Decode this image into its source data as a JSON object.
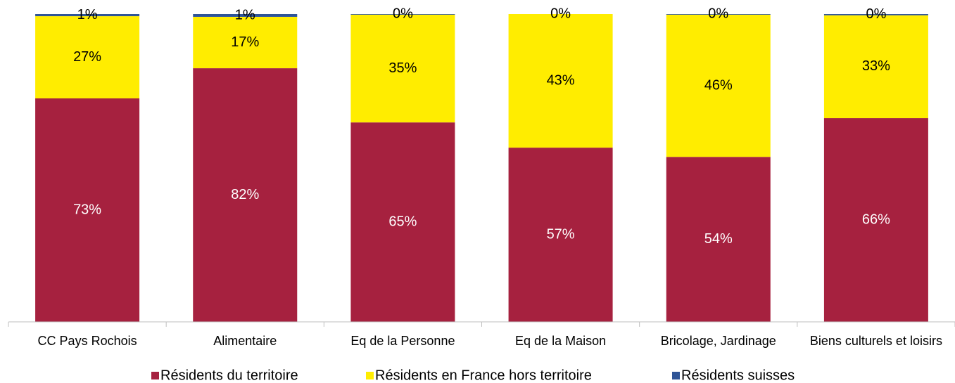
{
  "chart_data": {
    "type": "stacked_bar",
    "categories": [
      "CC Pays Rochois",
      "Alimentaire",
      "Eq de la Personne",
      "Eq de la Maison",
      "Bricolage, Jardinage",
      "Biens culturels et loisirs"
    ],
    "series": [
      {
        "name": "Résidents du territoire",
        "color": "#a6213f",
        "values": [
          72.6,
          82.4,
          64.8,
          56.6,
          53.6,
          66.2
        ],
        "value_labels": [
          "73%",
          "82%",
          "65%",
          "57%",
          "54%",
          "66%"
        ]
      },
      {
        "name": "Résidents en France hors territoire",
        "color": "#ffed00",
        "values": [
          26.7,
          16.7,
          35.0,
          43.4,
          46.2,
          33.4
        ],
        "value_labels": [
          "27%",
          "17%",
          "35%",
          "43%",
          "46%",
          "33%"
        ]
      },
      {
        "name": "Résidents suisses",
        "color": "#2f5597",
        "values": [
          0.7,
          0.9,
          0.2,
          0,
          0.2,
          0.4
        ],
        "value_labels": [
          "1%",
          "1%",
          "0%",
          "0%",
          "0%",
          "0%"
        ]
      }
    ],
    "ylim": [
      0,
      100
    ],
    "legend": "bottom"
  }
}
